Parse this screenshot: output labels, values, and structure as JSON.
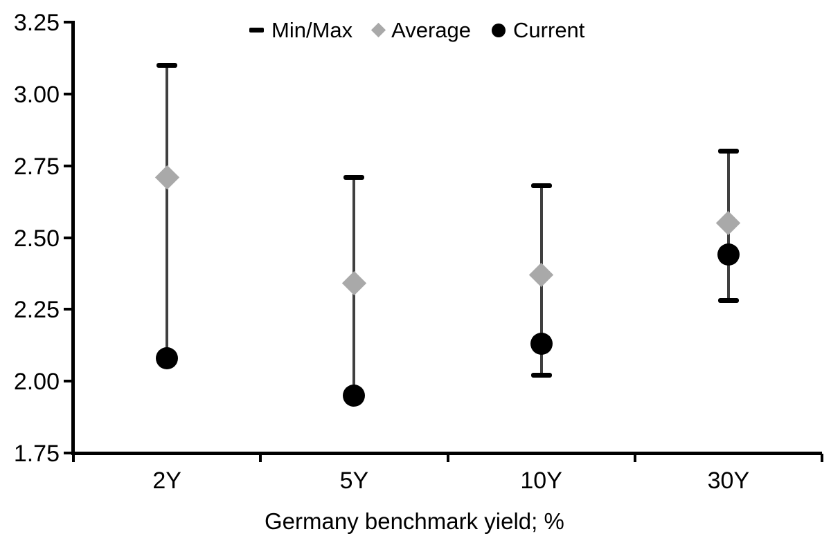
{
  "legend": {
    "items": [
      {
        "label": "Min/Max",
        "marker": "dash-icon",
        "color": "#000000"
      },
      {
        "label": "Average",
        "marker": "diamond-icon",
        "color": "#A9A9A9"
      },
      {
        "label": "Current",
        "marker": "circle-icon",
        "color": "#000000"
      }
    ]
  },
  "axis": {
    "yticks": [
      "1.75",
      "2.00",
      "2.25",
      "2.50",
      "2.75",
      "3.00",
      "3.25"
    ]
  },
  "colors": {
    "whisker": "#3F3F3F",
    "cap": "#000000",
    "average": "#A9A9A9",
    "current": "#000000",
    "axis": "#000000",
    "text": "#000000"
  },
  "chart_data": {
    "type": "scatter",
    "subtype": "min-max-range",
    "categories": [
      "2Y",
      "5Y",
      "10Y",
      "30Y"
    ],
    "series": [
      {
        "name": "Min/Max",
        "min": [
          2.08,
          1.95,
          2.02,
          2.28
        ],
        "max": [
          3.1,
          2.71,
          2.68,
          2.8
        ]
      },
      {
        "name": "Average",
        "values": [
          2.71,
          2.34,
          2.37,
          2.55
        ]
      },
      {
        "name": "Current",
        "values": [
          2.08,
          1.95,
          2.13,
          2.44
        ]
      }
    ],
    "title": "",
    "xlabel": "Germany benchmark yield; %",
    "ylabel": "",
    "ylim": [
      1.75,
      3.25
    ],
    "ytick_step": 0.25,
    "grid": false,
    "legend_position": "top"
  }
}
